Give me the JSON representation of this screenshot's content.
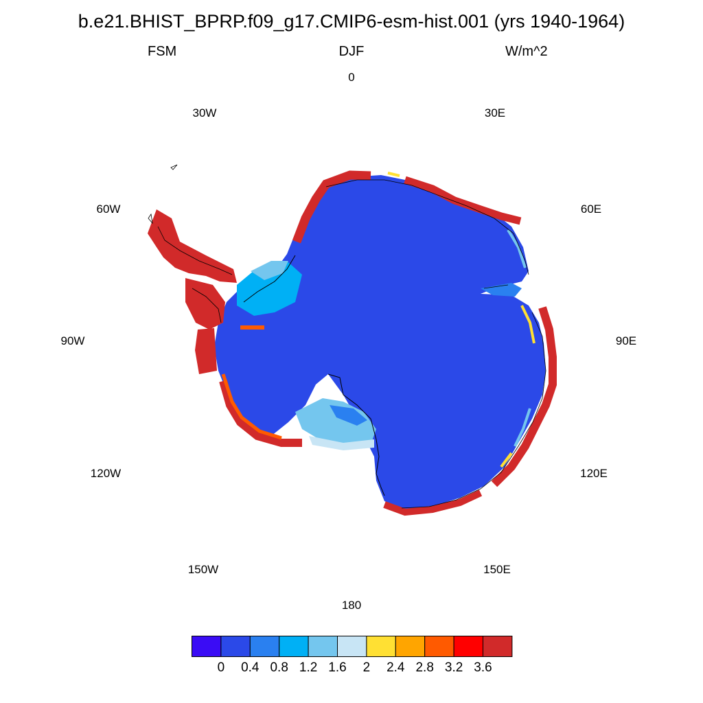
{
  "title": "b.e21.BHIST_BPRP.f09_g17.CMIP6-esm-hist.001 (yrs 1940-1964)",
  "subtitle": {
    "left": "FSM",
    "center": "DJF",
    "right": "W/m^2"
  },
  "longitude_labels": [
    "0",
    "30E",
    "60E",
    "90E",
    "120E",
    "150E",
    "180",
    "150W",
    "120W",
    "90W",
    "60W",
    "30W"
  ],
  "colors": {
    "levels": [
      "#3a0cf5",
      "#2b49e8",
      "#2a80f0",
      "#00b0f5",
      "#74c6ee",
      "#c8e5f5",
      "#ffe033",
      "#ffa500",
      "#ff5a00",
      "#ff0000",
      "#d12a2a"
    ],
    "ice_sheet": "#2b49e8",
    "coastline": "#000000"
  },
  "chart_data": {
    "type": "heatmap",
    "projection": "south polar stereographic",
    "variable": "FSM",
    "season": "DJF",
    "units": "W/m^2",
    "colorbar_ticks": [
      "0",
      "0.4",
      "0.8",
      "1.2",
      "1.6",
      "2",
      "2.4",
      "2.8",
      "3.2",
      "3.6"
    ],
    "bins": 11,
    "summary": "Interior ice sheet ~0-0.4 W/m^2; coastal margins and Antarctic Peninsula exceed 3.6 W/m^2; ice shelves (Ross, Filchner-Ronne) 0.8-2"
  }
}
